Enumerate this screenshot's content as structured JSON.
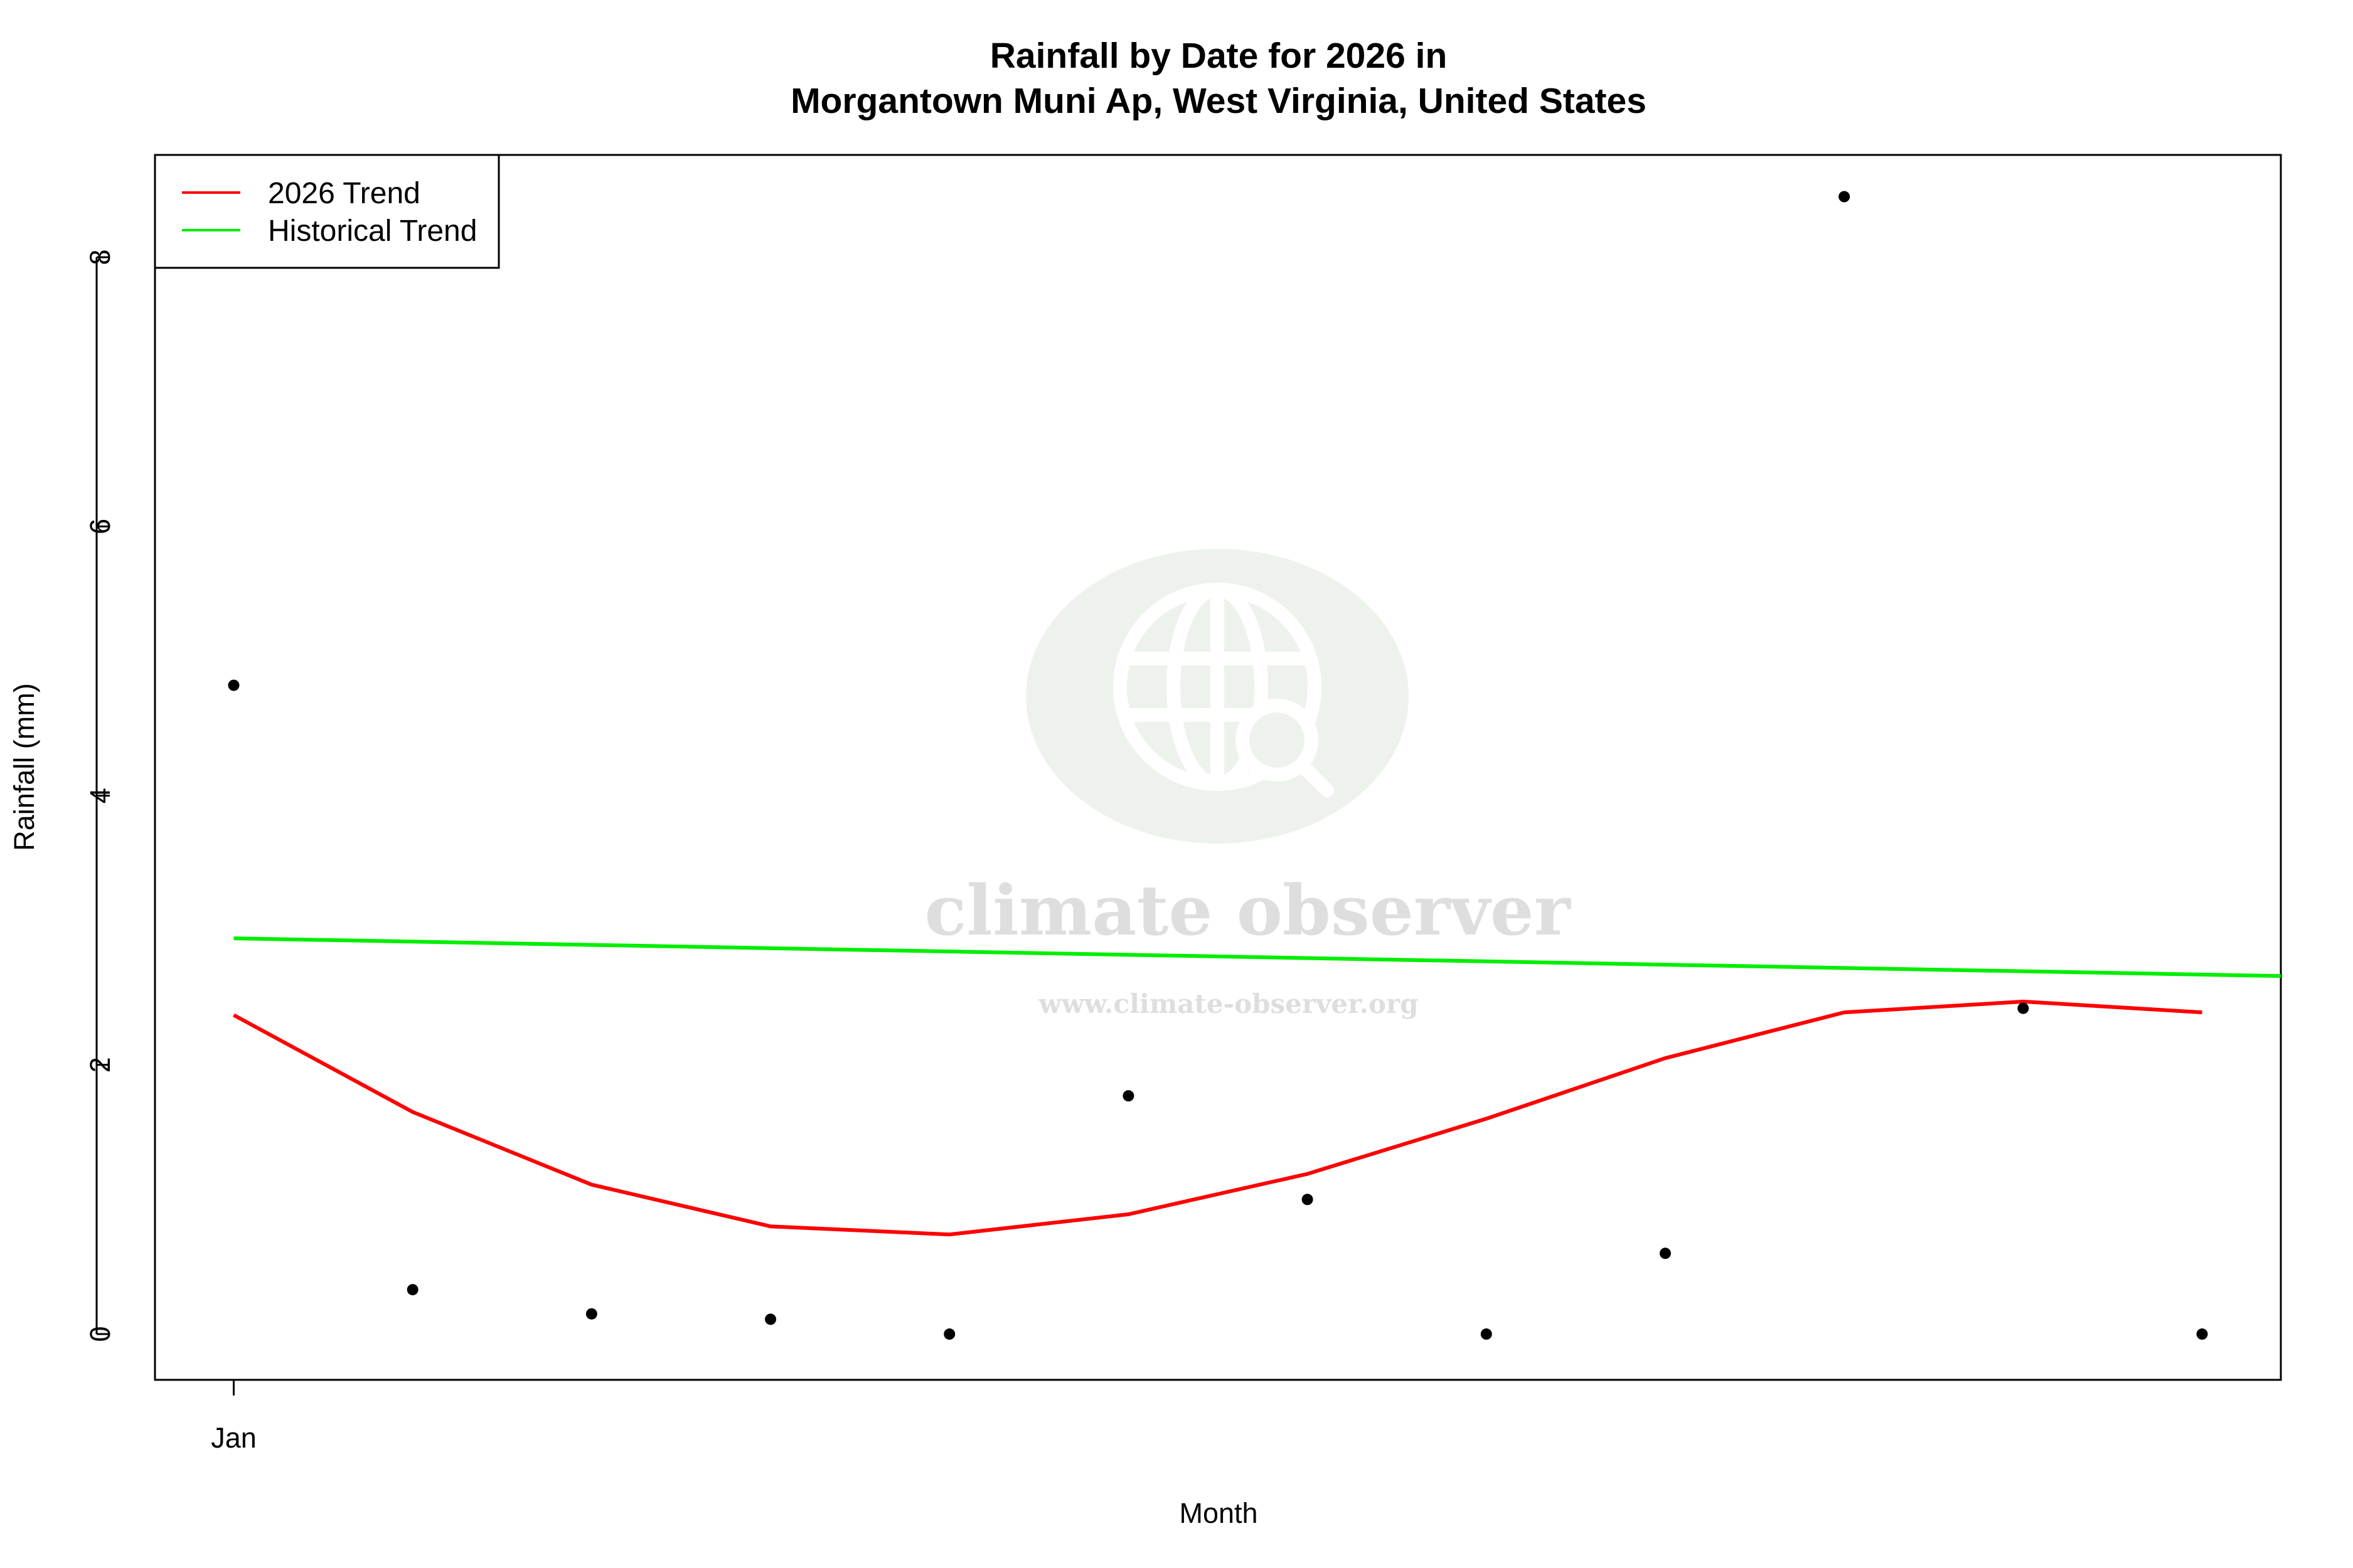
{
  "chart_data": {
    "type": "scatter",
    "title": "Rainfall by Date for 2026 in",
    "subtitle": "Morgantown Muni Ap, West Virginia, United States",
    "xlabel": "Month",
    "ylabel": "Rainfall (mm)",
    "x_ticks": [
      {
        "x": 1,
        "label": "Jan"
      }
    ],
    "y_ticks": [
      0,
      2,
      4,
      6,
      8
    ],
    "xlim": [
      0.56,
      12.44
    ],
    "ylim": [
      -0.34,
      8.76
    ],
    "grid": false,
    "legend_position": "top-left",
    "points": {
      "x": [
        1,
        2,
        3,
        4,
        5,
        6,
        7,
        8,
        9,
        10,
        11,
        12
      ],
      "y": [
        4.82,
        0.33,
        0.15,
        0.11,
        0.0,
        1.77,
        1.0,
        0.0,
        0.6,
        8.45,
        2.42,
        0.0
      ],
      "color": "#000000"
    },
    "series": [
      {
        "name": "2026 Trend",
        "color": "#ff0000",
        "x": [
          1,
          2,
          3,
          4,
          5,
          6,
          7,
          8,
          9,
          10,
          11,
          12
        ],
        "y": [
          2.37,
          1.65,
          1.11,
          0.8,
          0.74,
          0.89,
          1.19,
          1.6,
          2.05,
          2.39,
          2.47,
          2.39
        ]
      },
      {
        "name": "Historical Trend",
        "color": "#00ee00",
        "x": [
          1,
          12.44
        ],
        "y": [
          2.94,
          2.66
        ]
      }
    ]
  },
  "watermark": {
    "brand": "climate observer",
    "url": "www.climate-observer.org"
  }
}
